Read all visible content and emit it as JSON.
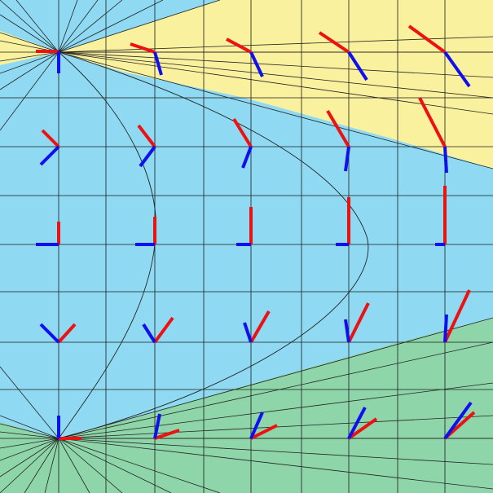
{
  "diagram": {
    "colors": {
      "background": "#8fdaf2",
      "upper_region": "#faf19e",
      "lower_region": "#8ed6aa",
      "grid": "#1a1a1a",
      "first_vector": "#ee1111",
      "second_vector": "#1010ee"
    },
    "singular_points": [
      "upper-left-source",
      "lower-left-source"
    ],
    "frame_grid": {
      "columns": 5,
      "rows": 5
    }
  }
}
